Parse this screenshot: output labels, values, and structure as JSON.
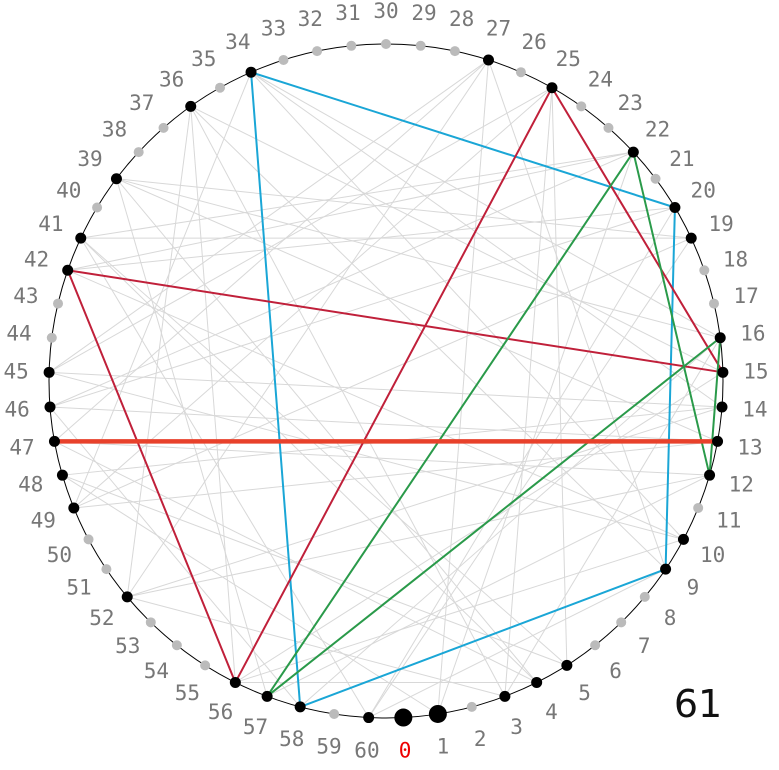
{
  "diagram": {
    "modulus": 61,
    "modulus_label": "61",
    "node_count": 61,
    "labels": [
      "0",
      "1",
      "2",
      "3",
      "4",
      "5",
      "6",
      "7",
      "8",
      "9",
      "10",
      "11",
      "12",
      "13",
      "14",
      "15",
      "16",
      "17",
      "18",
      "19",
      "20",
      "21",
      "22",
      "23",
      "24",
      "25",
      "26",
      "27",
      "28",
      "29",
      "30",
      "31",
      "32",
      "33",
      "34",
      "35",
      "36",
      "37",
      "38",
      "39",
      "40",
      "41",
      "42",
      "43",
      "44",
      "45",
      "46",
      "47",
      "48",
      "49",
      "50",
      "51",
      "52",
      "53",
      "54",
      "55",
      "56",
      "57",
      "58",
      "59",
      "60"
    ],
    "black_nodes": [
      1,
      3,
      4,
      5,
      9,
      10,
      12,
      13,
      14,
      15,
      16,
      19,
      20,
      22,
      25,
      27,
      34,
      36,
      39,
      41,
      42,
      45,
      46,
      47,
      48,
      49,
      52,
      56,
      57,
      58,
      60
    ],
    "large_nodes": [
      0,
      1
    ],
    "colors": {
      "circle": "#000000",
      "black_node": "#000000",
      "gray_node": "#bbbbbb",
      "label": "#777777",
      "zero_label": "#ee0000",
      "background_edge": "#d8d8d8",
      "cyan": "#1aa6d6",
      "crimson": "#c0203a",
      "green": "#2a9a4a",
      "orange": "#e8412b"
    },
    "highlight_edges": [
      {
        "from": 34,
        "to": 20,
        "color": "cyan"
      },
      {
        "from": 20,
        "to": 9,
        "color": "cyan"
      },
      {
        "from": 9,
        "to": 58,
        "color": "cyan"
      },
      {
        "from": 58,
        "to": 34,
        "color": "cyan"
      },
      {
        "from": 25,
        "to": 15,
        "color": "crimson"
      },
      {
        "from": 15,
        "to": 42,
        "color": "crimson"
      },
      {
        "from": 42,
        "to": 56,
        "color": "crimson"
      },
      {
        "from": 56,
        "to": 25,
        "color": "crimson"
      },
      {
        "from": 22,
        "to": 12,
        "color": "green"
      },
      {
        "from": 12,
        "to": 16,
        "color": "green"
      },
      {
        "from": 16,
        "to": 57,
        "color": "green"
      },
      {
        "from": 57,
        "to": 22,
        "color": "green"
      },
      {
        "from": 47,
        "to": 13,
        "color": "orange",
        "thick": true
      }
    ],
    "background_edges": [
      [
        1,
        27
      ],
      [
        3,
        36
      ],
      [
        5,
        41
      ],
      [
        3,
        16
      ],
      [
        4,
        39
      ],
      [
        10,
        45
      ],
      [
        12,
        52
      ],
      [
        13,
        46
      ],
      [
        14,
        48
      ],
      [
        19,
        49
      ],
      [
        22,
        41
      ],
      [
        25,
        45
      ],
      [
        27,
        47
      ],
      [
        39,
        16
      ],
      [
        36,
        9
      ],
      [
        41,
        19
      ],
      [
        45,
        14
      ],
      [
        46,
        20
      ],
      [
        48,
        5
      ],
      [
        49,
        25
      ],
      [
        52,
        27
      ],
      [
        56,
        36
      ],
      [
        57,
        39
      ],
      [
        60,
        41
      ],
      [
        58,
        46
      ],
      [
        1,
        48
      ],
      [
        3,
        52
      ],
      [
        4,
        56
      ],
      [
        9,
        60
      ],
      [
        10,
        42
      ],
      [
        12,
        47
      ],
      [
        13,
        49
      ],
      [
        14,
        52
      ],
      [
        15,
        56
      ],
      [
        16,
        34
      ],
      [
        19,
        60
      ],
      [
        20,
        42
      ],
      [
        22,
        46
      ],
      [
        25,
        3
      ],
      [
        27,
        9
      ],
      [
        34,
        14
      ],
      [
        36,
        15
      ],
      [
        39,
        19
      ],
      [
        41,
        4
      ],
      [
        42,
        22
      ],
      [
        45,
        27
      ],
      [
        47,
        4
      ],
      [
        49,
        34
      ],
      [
        52,
        36
      ],
      [
        56,
        10
      ],
      [
        57,
        12
      ],
      [
        58,
        16
      ],
      [
        60,
        20
      ],
      [
        1,
        22
      ],
      [
        5,
        25
      ],
      [
        10,
        34
      ],
      [
        13,
        39
      ]
    ]
  }
}
